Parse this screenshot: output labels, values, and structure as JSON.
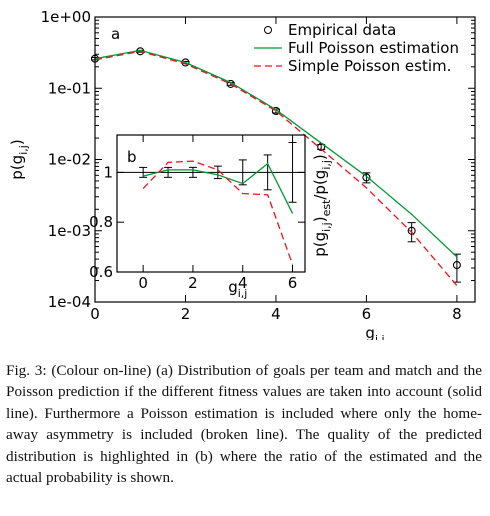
{
  "chart_data": [
    {
      "type": "line",
      "log_y": true,
      "annotation": "a",
      "xlabel": [
        "g",
        "i,j"
      ],
      "ylabel": [
        "p(g",
        "i,j",
        ")"
      ],
      "xlim": [
        0,
        8.4
      ],
      "xticks": [
        0,
        2,
        4,
        6,
        8
      ],
      "ylim": [
        0.0001,
        1
      ],
      "yticks": [
        {
          "value": 0.0001,
          "label": "1e-04"
        },
        {
          "value": 0.001,
          "label": "1e-03"
        },
        {
          "value": 0.01,
          "label": "1e-02"
        },
        {
          "value": 0.1,
          "label": "1e-01"
        },
        {
          "value": 1,
          "label": "1e+00"
        }
      ],
      "legend": "upper right",
      "grid": false,
      "x": [
        0,
        1,
        2,
        3,
        4,
        5,
        6,
        7,
        8
      ],
      "series": [
        {
          "name": "Empirical data",
          "color": "#000000",
          "marker": "circle",
          "line": false,
          "values": [
            0.26,
            0.33,
            0.23,
            0.115,
            0.048,
            0.015,
            0.0056,
            0.001,
            0.00033
          ],
          "errors": [
            0.01,
            0.01,
            0.008,
            0.005,
            0.003,
            0.0012,
            0.0009,
            0.0003,
            0.00014
          ]
        },
        {
          "name": "Full Poisson estimation",
          "color": "#009933",
          "line": true,
          "values": [
            0.26,
            0.34,
            0.23,
            0.12,
            0.05,
            0.017,
            0.0058,
            0.0017,
            0.00043
          ]
        },
        {
          "name": "Simple Poisson estim.",
          "color": "#e8141e",
          "line": true,
          "dash": true,
          "values": [
            0.25,
            0.33,
            0.22,
            0.115,
            0.048,
            0.014,
            0.004,
            0.00095,
            0.00017
          ]
        }
      ]
    },
    {
      "type": "line",
      "log_y": false,
      "annotation": "b",
      "xlabel": [
        "g",
        "i,j"
      ],
      "ylabel": [
        "p(g",
        "i,j",
        ")",
        "est",
        "/p(g",
        "i,j",
        ")"
      ],
      "xlim": [
        -1.05,
        6.5
      ],
      "xticks": [
        0,
        2,
        4,
        6
      ],
      "ylim": [
        0.6,
        1.15
      ],
      "yticks": [
        0.6,
        0.8,
        1
      ],
      "grid": false,
      "x": [
        0,
        1,
        2,
        3,
        4,
        5,
        6
      ],
      "series": [
        {
          "color": "#000000",
          "line": true,
          "extend": true,
          "values": [
            1,
            1,
            1,
            1,
            1,
            1,
            1
          ],
          "errors": [
            0.02,
            0.02,
            0.02,
            0.025,
            0.05,
            0.07,
            0.12
          ]
        },
        {
          "color": "#009933",
          "line": true,
          "values": [
            0.985,
            1.01,
            1.01,
            0.99,
            0.955,
            1.035,
            0.835
          ]
        },
        {
          "color": "#e8141e",
          "line": true,
          "dash": true,
          "values": [
            0.935,
            1.04,
            1.045,
            1.01,
            0.915,
            0.91,
            0.63
          ]
        }
      ]
    }
  ],
  "caption": "Fig. 3: (Colour on-line) (a) Distribution of goals per team and match and the Poisson prediction if the different fitness values are taken into account (solid line). Furthermore a Poisson estimation is included where only the home-away asymmetry is included (broken line). The quality of the predicted distribution is highlighted in (b) where the ratio of the estimated and the actual probability is shown."
}
